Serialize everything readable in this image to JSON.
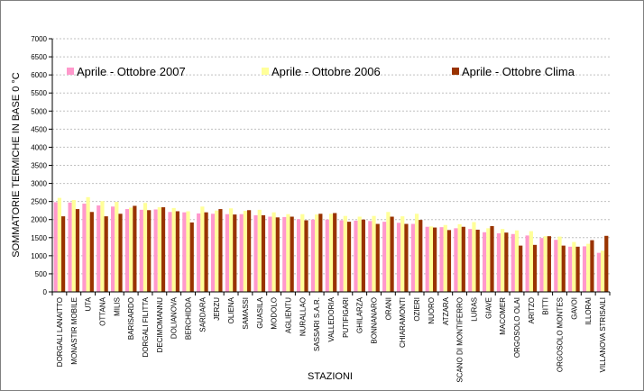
{
  "chart_data": {
    "type": "bar",
    "xlabel": "STAZIONI",
    "ylabel": "SOMMATORIE TERMICHE IN BASE 0 °C",
    "ylim": [
      0,
      7000
    ],
    "yticks": [
      0,
      500,
      1000,
      1500,
      2000,
      2500,
      3000,
      3500,
      4000,
      4500,
      5000,
      5500,
      6000,
      6500,
      7000
    ],
    "grid": true,
    "legend_position": "top",
    "categories": [
      "DORGALI LANAITTO",
      "MONASTIR MOBILE",
      "UTA",
      "OTTANA",
      "MILIS",
      "BARISARDO",
      "DORGALI FILITTA",
      "DECIMOMANNU",
      "DOLIANOVA",
      "BERCHIDDA",
      "SARDARA",
      "JERZU",
      "OLIENA",
      "SAMASSI",
      "GUASILA",
      "MODOLO",
      "AGLIENTU",
      "NURALLAO",
      "SASSARI S.A.R.",
      "VALLEDORIA",
      "PUTIFIGARI",
      "GHILARZA",
      "BONNANARO",
      "ORANI",
      "CHIARAMONTI",
      "OZIERI",
      "NUORO",
      "ATZARA",
      "SCANO DI MONTIFERRO",
      "LURAS",
      "GIAVE",
      "MACOMER",
      "ORGOSOLO OLAI",
      "ARITZO",
      "BITTI",
      "ORGOSOLO MONTES",
      "GAVOI",
      "ILLORAI",
      "VILLANOVA STRISAILI"
    ],
    "series": [
      {
        "name": "Aprile - Ottobre 2007",
        "color": "#ff99cc",
        "values": [
          2480,
          2470,
          2440,
          2390,
          2360,
          2290,
          2270,
          2280,
          2210,
          2200,
          2170,
          2160,
          2150,
          2150,
          2120,
          2080,
          2070,
          2010,
          2000,
          2000,
          1980,
          1970,
          1960,
          1940,
          1910,
          1880,
          1800,
          1790,
          1760,
          1740,
          1650,
          1620,
          1600,
          1560,
          1490,
          1440,
          1250,
          1260,
          1080
        ]
      },
      {
        "name": "Aprile - Ottobre 2006",
        "color": "#ffff99",
        "values": [
          2600,
          2540,
          2620,
          2510,
          2490,
          2330,
          2460,
          2340,
          2320,
          2230,
          2360,
          2250,
          2310,
          2240,
          2270,
          2200,
          2150,
          2150,
          2140,
          2160,
          2100,
          2080,
          2100,
          2210,
          2090,
          2160,
          1810,
          1850,
          1870,
          1930,
          1760,
          1740,
          1700,
          1680,
          1540,
          1530,
          1380,
          1330,
          1140
        ]
      },
      {
        "name": "Aprile - Ottobre Clima",
        "color": "#993300",
        "values": [
          2090,
          2290,
          2210,
          2090,
          2160,
          2380,
          2260,
          2340,
          2230,
          1920,
          2200,
          2290,
          2140,
          2260,
          2120,
          2060,
          2080,
          1980,
          2160,
          2180,
          1940,
          2000,
          1880,
          2080,
          1880,
          1990,
          1780,
          1710,
          1800,
          1720,
          1820,
          1640,
          1280,
          1300,
          1540,
          1280,
          1250,
          1430,
          1550
        ]
      }
    ]
  }
}
